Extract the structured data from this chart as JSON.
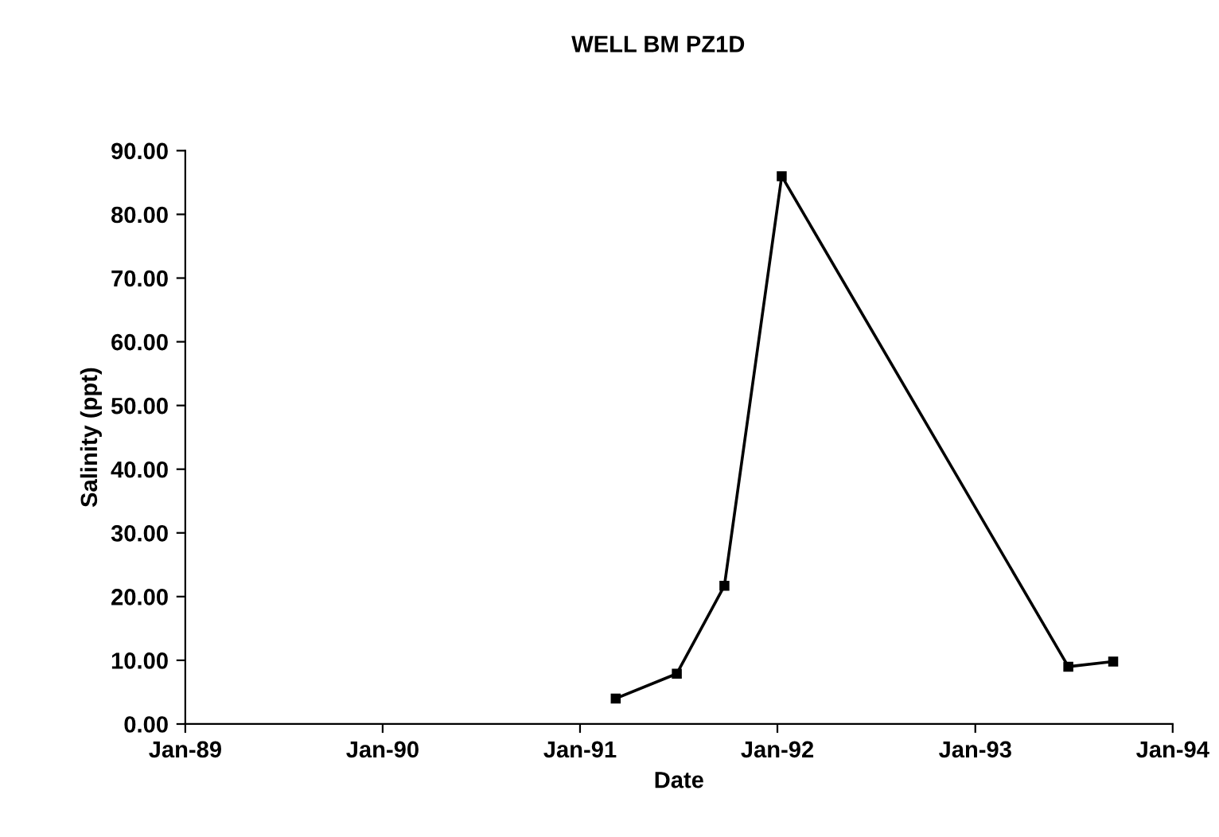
{
  "chart_data": {
    "type": "line",
    "title": "WELL BM PZ1D",
    "xlabel": "Date",
    "ylabel": "Salinity (ppt)",
    "x": [
      "1991-03-08",
      "1991-06-29",
      "1991-09-25",
      "1992-01-09",
      "1993-06-22",
      "1993-09-13"
    ],
    "series": [
      {
        "color": "#000000",
        "values": [
          4.0,
          7.9,
          21.7,
          86.0,
          9.0,
          9.8
        ]
      }
    ],
    "xlim": [
      "1989-01-01",
      "1994-01-01"
    ],
    "xticks": [
      {
        "value": "1989-01-01",
        "label": "Jan-89"
      },
      {
        "value": "1990-01-01",
        "label": "Jan-90"
      },
      {
        "value": "1991-01-01",
        "label": "Jan-91"
      },
      {
        "value": "1992-01-01",
        "label": "Jan-92"
      },
      {
        "value": "1993-01-01",
        "label": "Jan-93"
      },
      {
        "value": "1994-01-01",
        "label": "Jan-94"
      }
    ],
    "ylim": [
      0,
      90
    ],
    "yticks": [
      {
        "value": 0,
        "label": "0.00"
      },
      {
        "value": 10,
        "label": "10.00"
      },
      {
        "value": 20,
        "label": "20.00"
      },
      {
        "value": 30,
        "label": "30.00"
      },
      {
        "value": 40,
        "label": "40.00"
      },
      {
        "value": 50,
        "label": "50.00"
      },
      {
        "value": 60,
        "label": "60.00"
      },
      {
        "value": 70,
        "label": "70.00"
      },
      {
        "value": 80,
        "label": "80.00"
      },
      {
        "value": 90,
        "label": "90.00"
      }
    ],
    "marker": "square",
    "line_style": "solid",
    "grid": false,
    "legend": false
  }
}
